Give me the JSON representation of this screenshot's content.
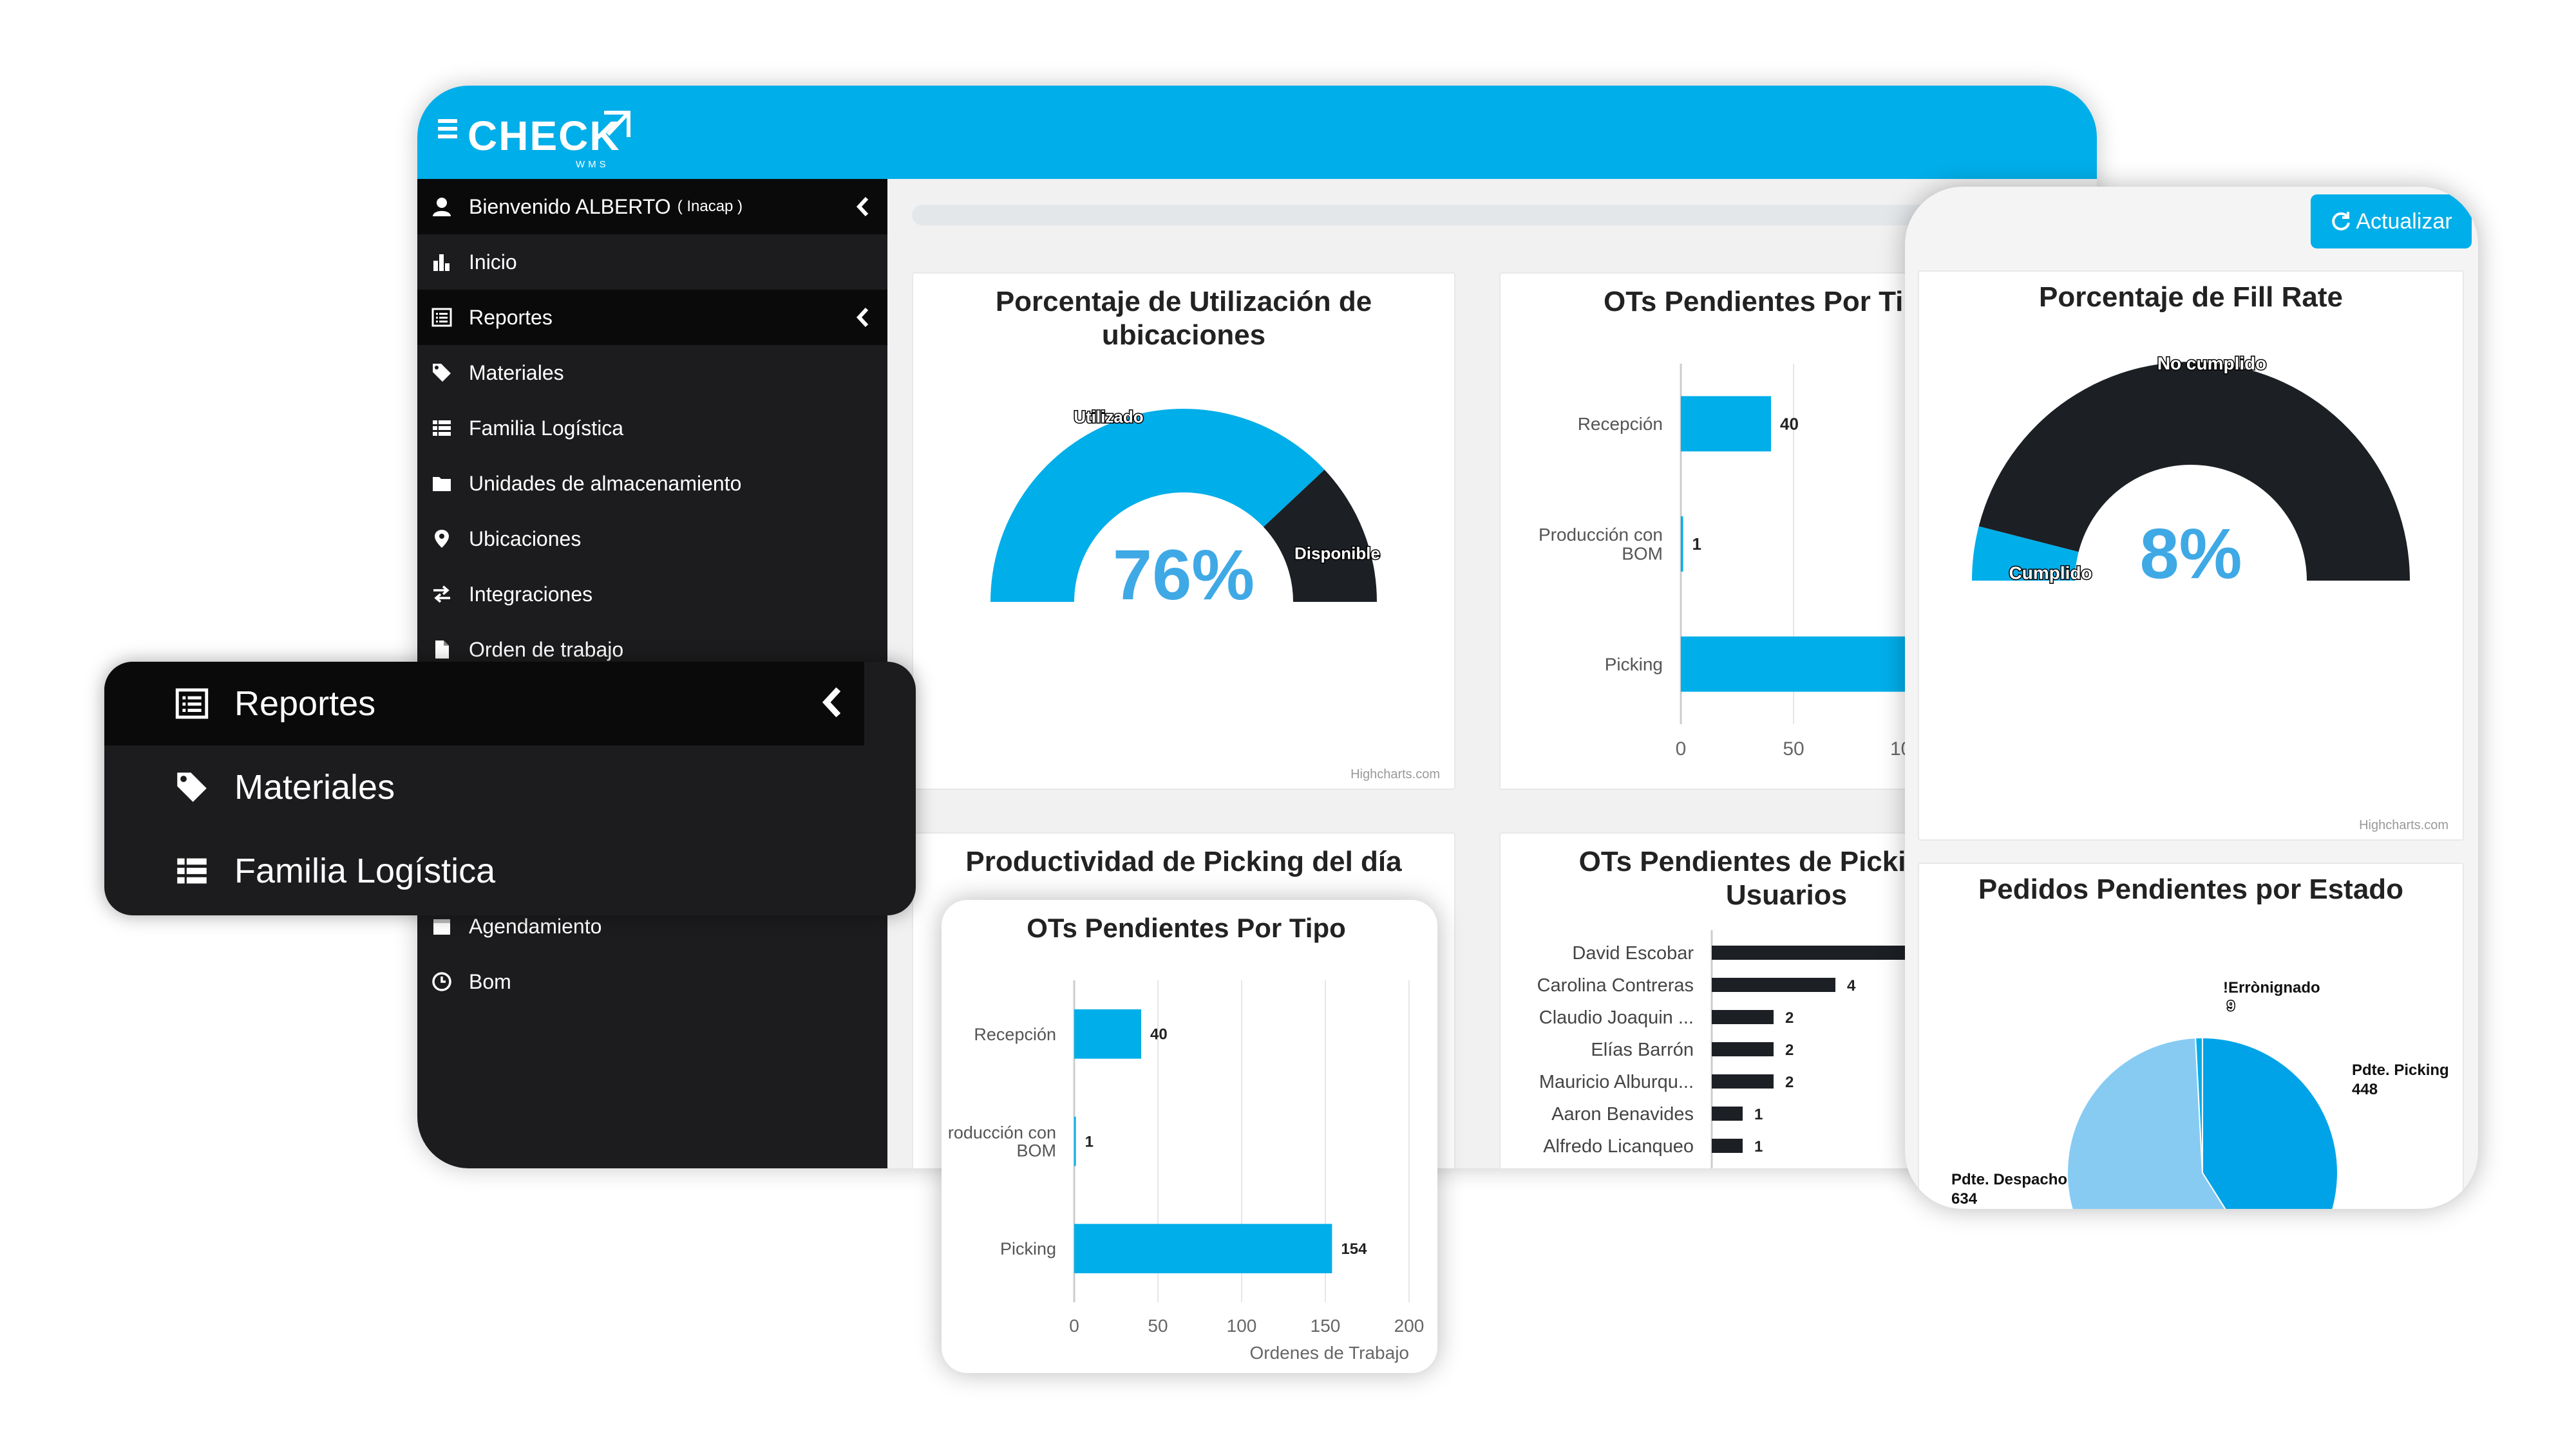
{
  "brand": {
    "logo_text": "CHECK",
    "logo_sub": "WMS",
    "accent": "#00aee9",
    "dark_color": "#1c1f24"
  },
  "sidebar": {
    "user": {
      "greeting": "Bienvenido ALBERTO",
      "org": "( Inacap )",
      "icon": "user-icon"
    },
    "items": [
      {
        "label": "Inicio",
        "icon": "bar-chart-icon"
      },
      {
        "label": "Reportes",
        "icon": "list-alt-icon"
      },
      {
        "label": "Materiales",
        "icon": "tag-icon"
      },
      {
        "label": "Familia Logística",
        "icon": "list-icon"
      },
      {
        "label": "Unidades de almacenamiento",
        "icon": "folder-icon"
      },
      {
        "label": "Ubicaciones",
        "icon": "map-marker-icon"
      },
      {
        "label": "Integraciones",
        "icon": "transfer-icon"
      },
      {
        "label": "Orden de trabajo",
        "icon": "file-icon"
      },
      {
        "label": "Agendamiento",
        "icon": "calendar-icon"
      },
      {
        "label": "Bom",
        "icon": "clock-icon"
      }
    ]
  },
  "menu_zoom": {
    "items": [
      {
        "label": "Reportes",
        "icon": "list-alt-icon"
      },
      {
        "label": "Materiales",
        "icon": "tag-icon"
      },
      {
        "label": "Familia Logística",
        "icon": "list-icon"
      }
    ]
  },
  "toolbar": {
    "refresh_label": "Actualizar",
    "refresh_icon": "refresh-icon"
  },
  "credits": "Highcharts.com",
  "chart_data": [
    {
      "id": "utilizacion",
      "type": "pie",
      "title_lines": [
        "Porcentaje de Utilización de",
        "ubicaciones"
      ],
      "categories": [
        "Utilizado",
        "Disponible"
      ],
      "values": [
        76,
        24
      ],
      "colors": [
        "#00aee9",
        "#1c1f24"
      ],
      "center_label": "76%"
    },
    {
      "id": "ots_tipo_main",
      "type": "bar",
      "title": "OTs Pendientes Por Tipo",
      "categories": [
        "Recepción",
        "Producción con BOM",
        "Picking"
      ],
      "values": [
        40,
        1,
        154
      ],
      "xlabel": "Ordenes de Trabajo",
      "xlim": [
        0,
        200
      ],
      "ticks": [
        0,
        50,
        100,
        150,
        200
      ]
    },
    {
      "id": "productividad",
      "type": "bar",
      "title": "Productividad de Picking del día"
    },
    {
      "id": "ots_usuarios",
      "type": "bar",
      "title_lines": [
        "OTs Pendientes de Picking por",
        "Usuarios"
      ],
      "categories": [
        "David Escobar",
        "Carolina Contreras",
        "Claudio Joaquin ...",
        "Elías Barrón",
        "Mauricio Alburqu...",
        "Aaron Benavides",
        "Alfredo Licanqueo"
      ],
      "values": [
        null,
        4,
        2,
        2,
        2,
        1,
        1
      ]
    },
    {
      "id": "fill_rate",
      "type": "pie",
      "title": "Porcentaje de Fill Rate",
      "categories": [
        "Cumplido",
        "No cumplido"
      ],
      "values": [
        8,
        92
      ],
      "colors": [
        "#00aee9",
        "#1c1f24"
      ],
      "center_label": "8%"
    },
    {
      "id": "pedidos_estado",
      "type": "pie",
      "title": "Pedidos Pendientes por Estado",
      "categories": [
        "Pdte. Picking",
        "Pdte. Despacho",
        "Errónignado"
      ],
      "values": [
        448,
        634,
        9
      ],
      "label_texts": [
        "Pdte. Picking",
        "Pdte. Despacho",
        "!Errònignado"
      ],
      "colors": [
        "#00a3e8",
        "#87cbf2",
        "#00aee9"
      ]
    },
    {
      "id": "ots_tipo_card",
      "type": "bar",
      "title": "OTs Pendientes Por Tipo",
      "categories": [
        "Recepción",
        "Producción con BOM",
        "Picking"
      ],
      "label_texts": [
        "Recepción",
        "roducción con",
        "BOM",
        "Picking"
      ],
      "values": [
        40,
        1,
        154
      ],
      "xlabel": "Ordenes de Trabajo",
      "xlim": [
        0,
        200
      ],
      "ticks": [
        0,
        50,
        100,
        150,
        200
      ]
    }
  ]
}
